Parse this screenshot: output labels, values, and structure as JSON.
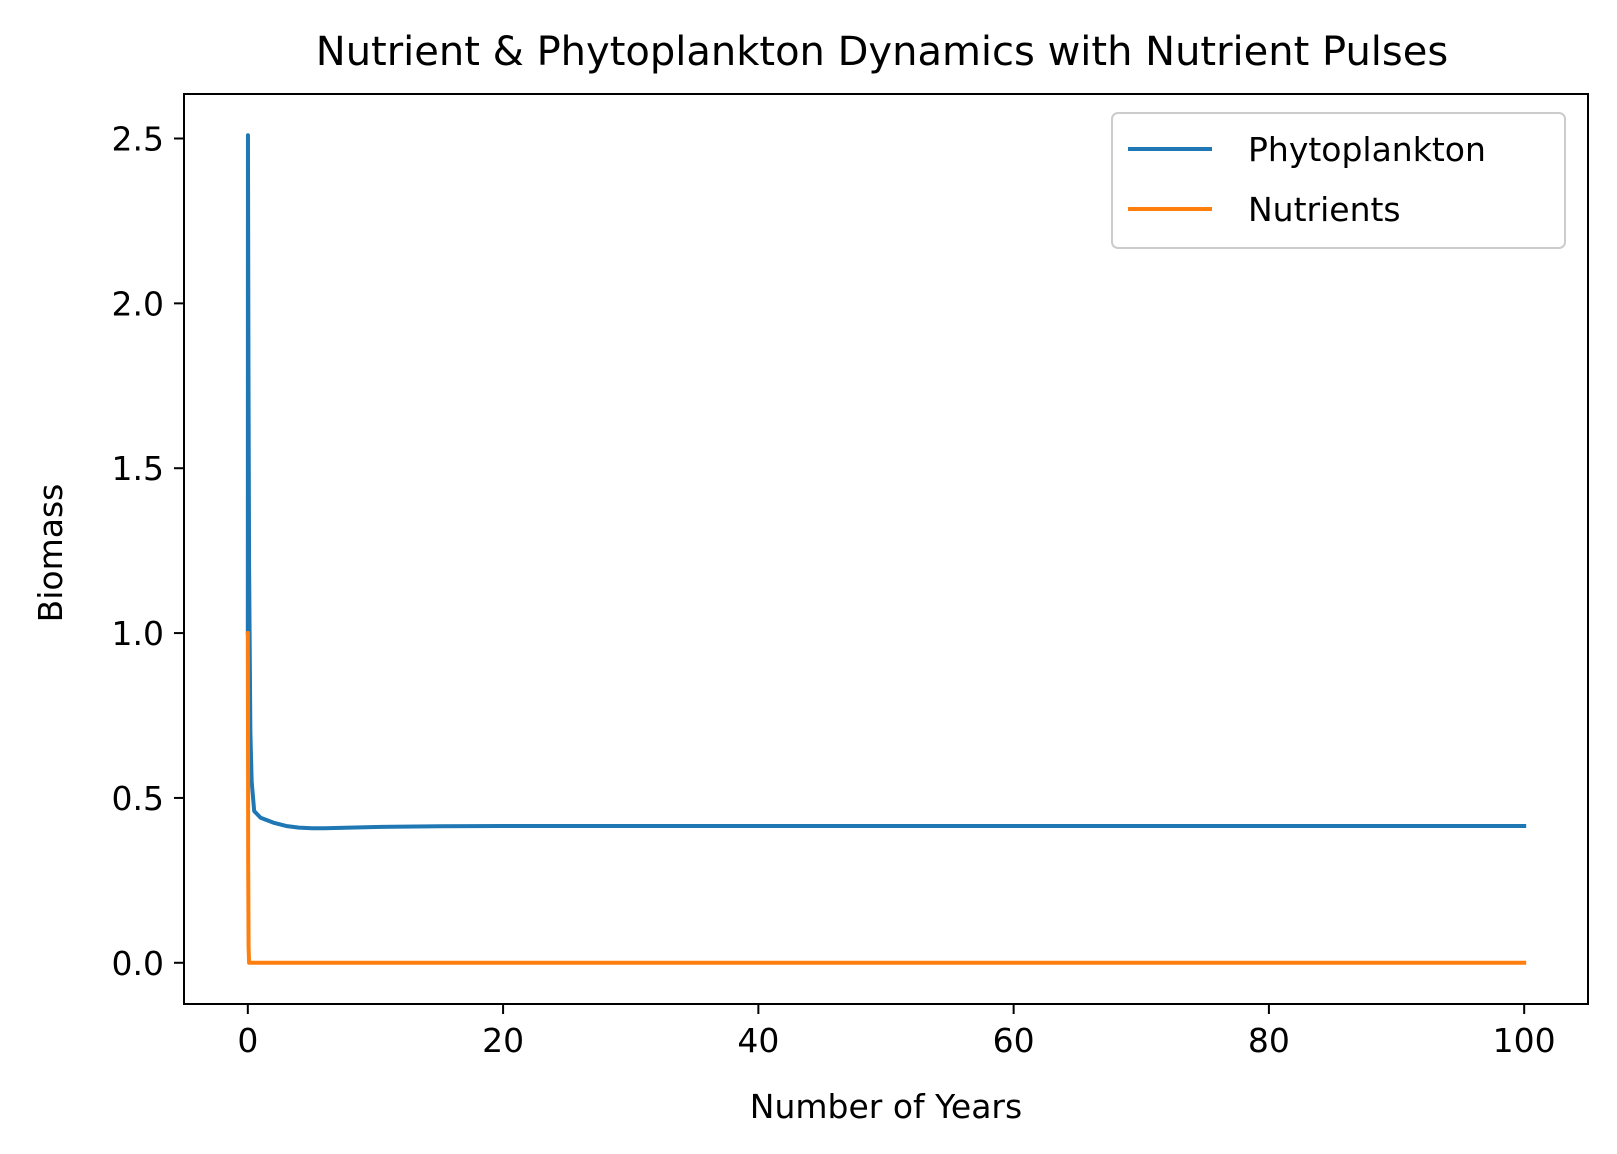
{
  "chart_data": {
    "type": "line",
    "title": "Nutrient & Phytoplankton Dynamics with Nutrient Pulses",
    "xlabel": "Number of Years",
    "ylabel": "Biomass",
    "xlim": [
      -5,
      105
    ],
    "ylim": [
      -0.125,
      2.635
    ],
    "xticks": [
      0,
      20,
      40,
      60,
      80,
      100
    ],
    "xtick_labels": [
      "0",
      "20",
      "40",
      "60",
      "80",
      "100"
    ],
    "yticks": [
      0.0,
      0.5,
      1.0,
      1.5,
      2.0,
      2.5
    ],
    "ytick_labels": [
      "0.0",
      "0.5",
      "1.0",
      "1.5",
      "2.0",
      "2.5"
    ],
    "grid": false,
    "legend_position": "top-right",
    "series": [
      {
        "name": "Phytoplankton",
        "color": "#1f77b4",
        "x": [
          0,
          0.01,
          0.05,
          0.1,
          0.2,
          0.3,
          0.5,
          1,
          2,
          3,
          4,
          5,
          6,
          8,
          10,
          15,
          20,
          30,
          40,
          50,
          60,
          70,
          80,
          90,
          100
        ],
        "y": [
          1.0,
          2.51,
          1.8,
          1.2,
          0.7,
          0.55,
          0.46,
          0.44,
          0.425,
          0.415,
          0.41,
          0.408,
          0.408,
          0.41,
          0.412,
          0.414,
          0.415,
          0.415,
          0.415,
          0.415,
          0.415,
          0.415,
          0.415,
          0.415,
          0.415
        ]
      },
      {
        "name": "Nutrients",
        "color": "#ff7f0e",
        "x": [
          0,
          0.01,
          0.03,
          0.06,
          0.1,
          1,
          10,
          20,
          40,
          60,
          80,
          100
        ],
        "y": [
          1.0,
          0.8,
          0.3,
          0.05,
          0.0,
          0.0,
          0.0,
          0.0,
          0.0,
          0.0,
          0.0,
          0.0
        ]
      }
    ]
  }
}
